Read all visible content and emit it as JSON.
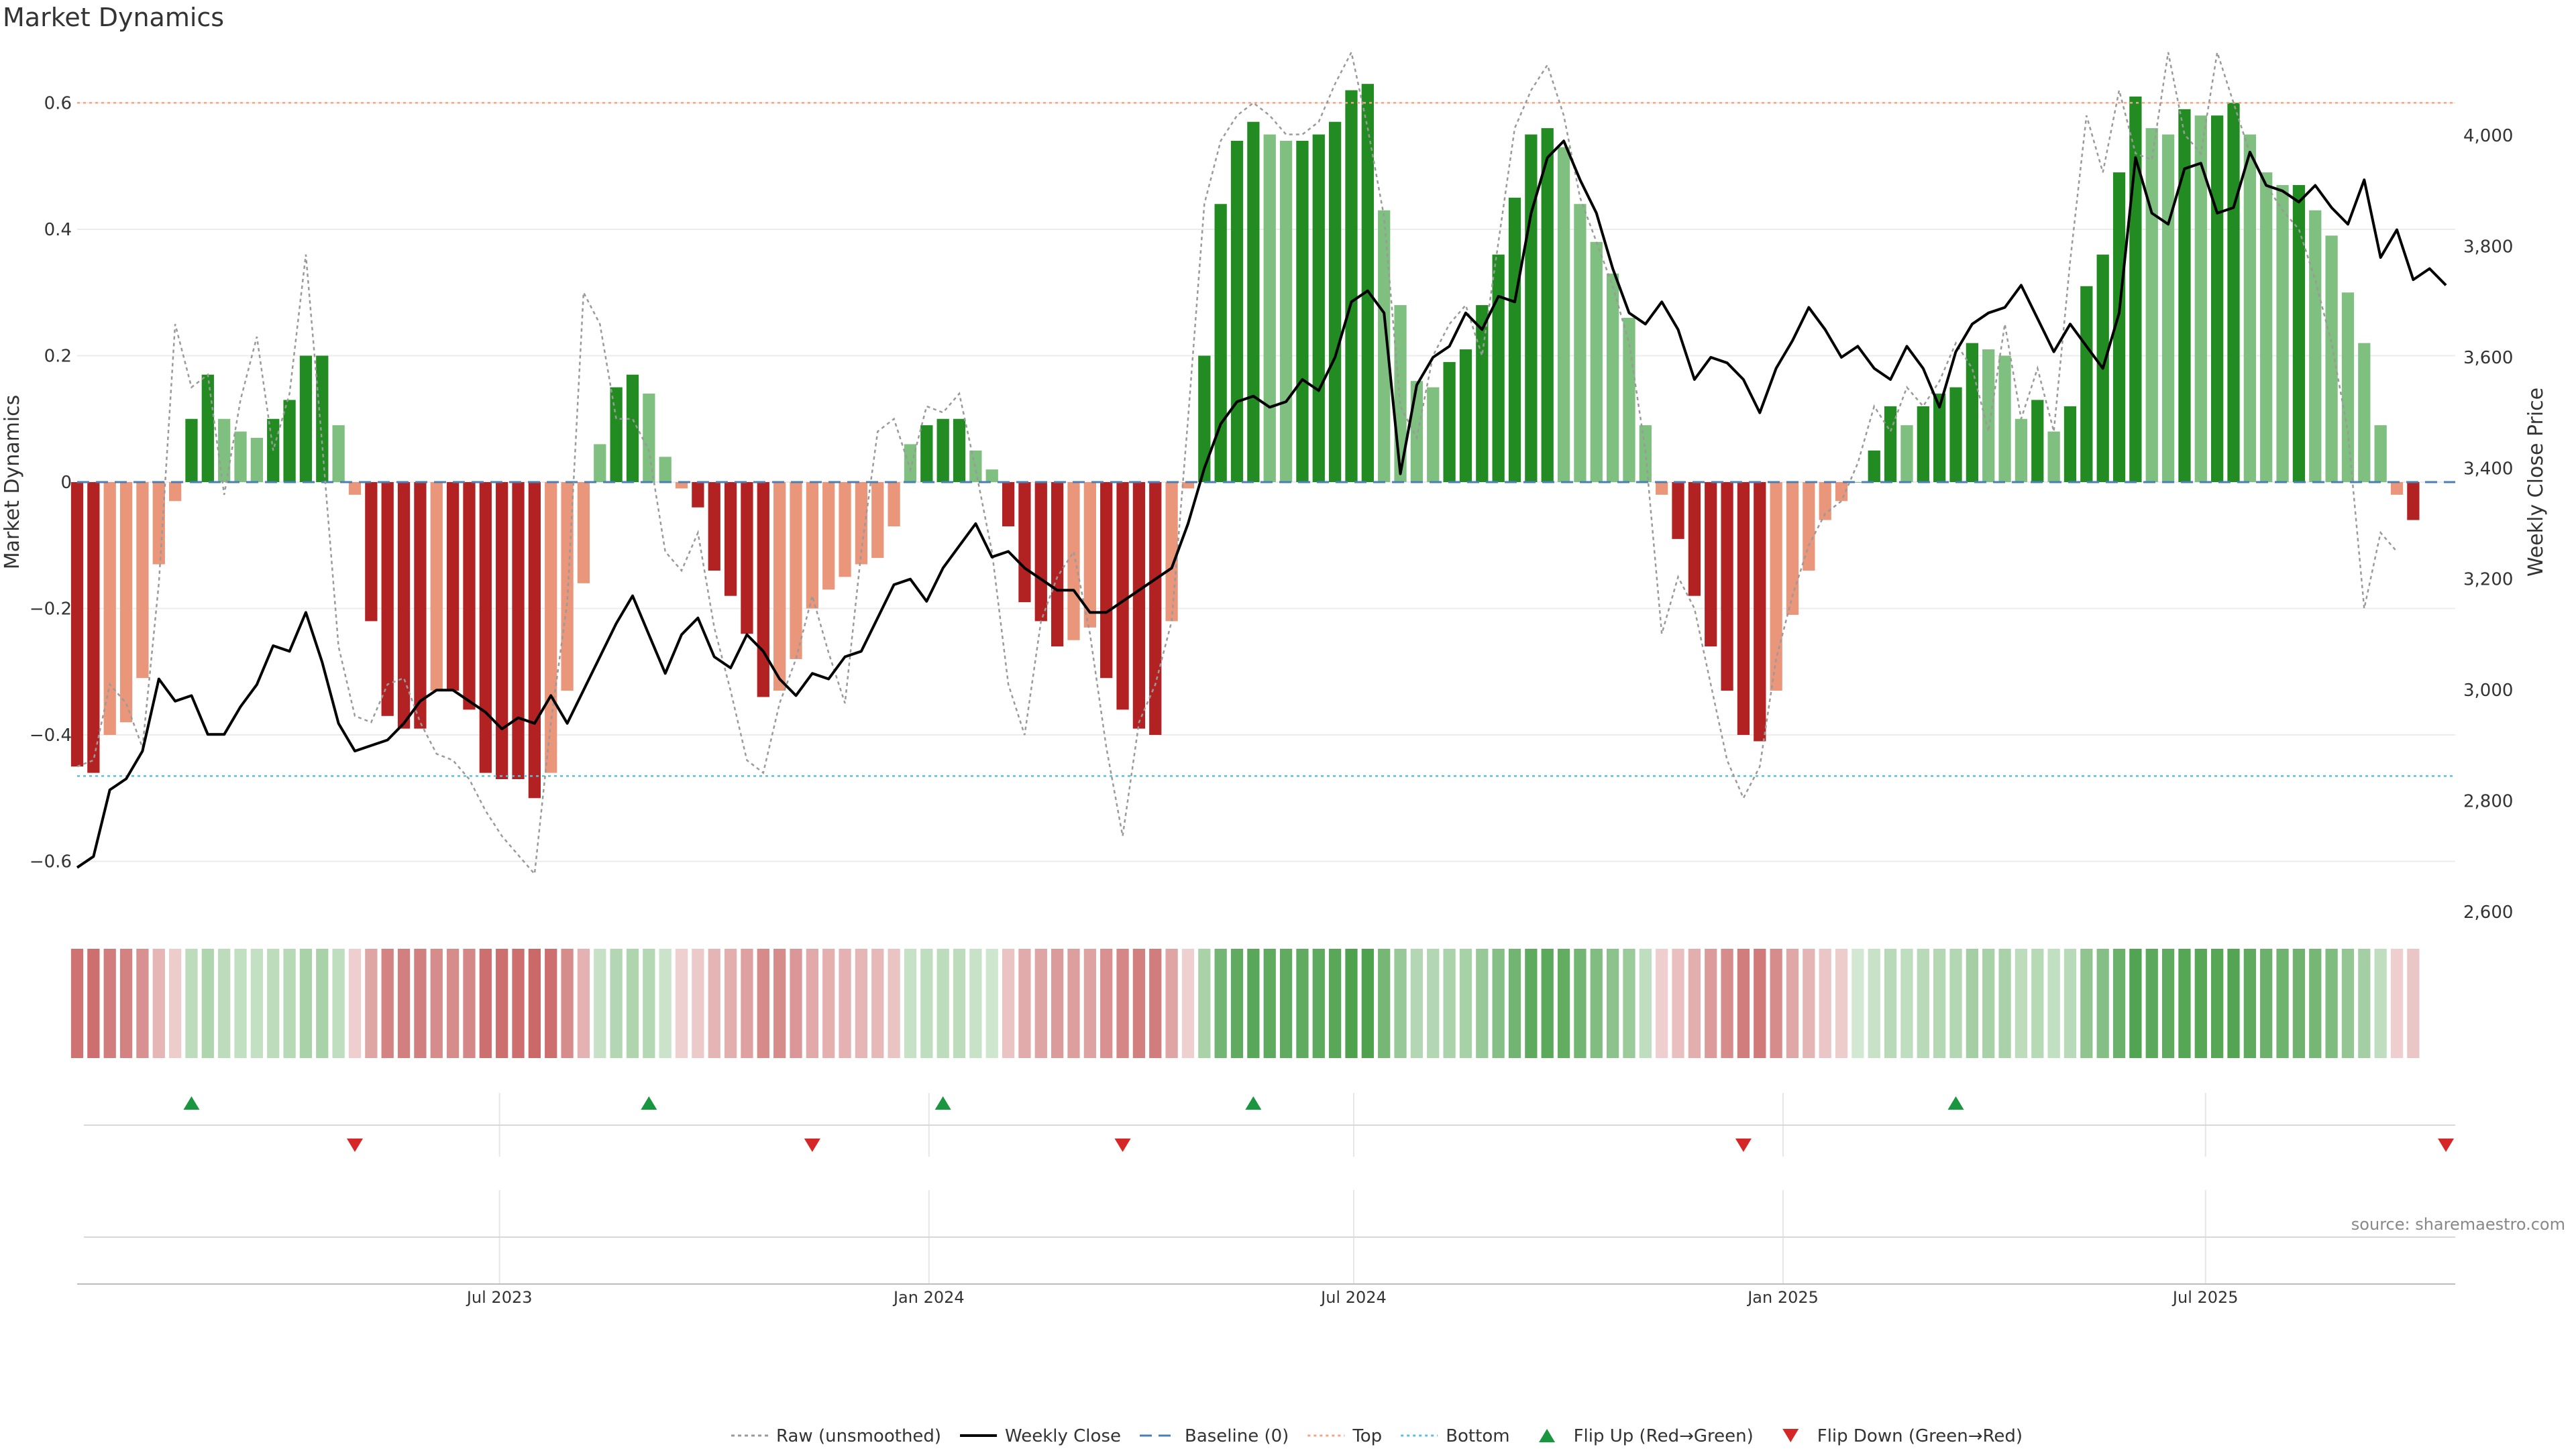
{
  "title": "Market Dynamics",
  "source": "source: sharemaestro.com",
  "chart_data": {
    "type": "bar",
    "title": "Market Dynamics",
    "ylabel_left": "Market Dynamics",
    "ylabel_right": "Weekly Close Price",
    "ylim_left": [
      -0.68,
      0.68
    ],
    "ylim_right": [
      2600,
      4150
    ],
    "yticks_left": [
      -0.6,
      -0.4,
      -0.2,
      0,
      0.2,
      0.4,
      0.6
    ],
    "ytick_labels_left": [
      "−0.6",
      "−0.4",
      "−0.2",
      "0",
      "0.2",
      "0.4",
      "0.6"
    ],
    "yticks_right": [
      2600,
      2800,
      3000,
      3200,
      3400,
      3600,
      3800,
      4000
    ],
    "ytick_labels_right": [
      "2,600",
      "2,800",
      "3,000",
      "3,200",
      "3,400",
      "3,600",
      "3,800",
      "4,000"
    ],
    "x_start": "2023-01-01",
    "x_end": "2025-10-16",
    "x_ticks": [
      {
        "date": "2023-07-01",
        "label": "Jul 2023"
      },
      {
        "date": "2024-01-01",
        "label": "Jan 2024"
      },
      {
        "date": "2024-07-01",
        "label": "Jul 2024"
      },
      {
        "date": "2025-01-01",
        "label": "Jan 2025"
      },
      {
        "date": "2025-07-01",
        "label": "Jul 2025"
      }
    ],
    "first_week": "2023-01-01",
    "week_step_days": 7,
    "bars": [
      -0.45,
      -0.46,
      -0.4,
      -0.38,
      -0.31,
      -0.13,
      -0.03,
      0.1,
      0.17,
      0.1,
      0.08,
      0.07,
      0.1,
      0.13,
      0.2,
      0.2,
      0.09,
      -0.02,
      -0.22,
      -0.37,
      -0.39,
      -0.39,
      -0.33,
      -0.33,
      -0.36,
      -0.46,
      -0.47,
      -0.47,
      -0.5,
      -0.46,
      -0.33,
      -0.16,
      0.06,
      0.15,
      0.17,
      0.14,
      0.04,
      -0.01,
      -0.04,
      -0.14,
      -0.18,
      -0.24,
      -0.34,
      -0.33,
      -0.28,
      -0.2,
      -0.17,
      -0.15,
      -0.13,
      -0.12,
      -0.07,
      0.06,
      0.09,
      0.1,
      0.1,
      0.05,
      0.02,
      -0.07,
      -0.19,
      -0.22,
      -0.26,
      -0.25,
      -0.23,
      -0.31,
      -0.36,
      -0.39,
      -0.4,
      -0.22,
      -0.01,
      0.2,
      0.44,
      0.54,
      0.57,
      0.55,
      0.54,
      0.54,
      0.55,
      0.57,
      0.62,
      0.63,
      0.43,
      0.28,
      0.16,
      0.15,
      0.19,
      0.21,
      0.28,
      0.36,
      0.45,
      0.55,
      0.56,
      0.53,
      0.44,
      0.38,
      0.33,
      0.26,
      0.09,
      -0.02,
      -0.09,
      -0.18,
      -0.26,
      -0.33,
      -0.4,
      -0.41,
      -0.33,
      -0.21,
      -0.14,
      -0.06,
      -0.03,
      0,
      0.05,
      0.12,
      0.09,
      0.12,
      0.14,
      0.15,
      0.22,
      0.21,
      0.2,
      0.1,
      0.13,
      0.08,
      0.12,
      0.31,
      0.36,
      0.49,
      0.61,
      0.56,
      0.55,
      0.59,
      0.58,
      0.58,
      0.6,
      0.55,
      0.49,
      0.47,
      0.47,
      0.43,
      0.39,
      0.3,
      0.22,
      0.09,
      -0.02,
      -0.06
    ],
    "weekly_close": [
      2680,
      2700,
      2820,
      2840,
      2890,
      3020,
      2980,
      2990,
      2920,
      2920,
      2970,
      3010,
      3080,
      3070,
      3140,
      3050,
      2940,
      2890,
      2900,
      2910,
      2940,
      2980,
      3000,
      3000,
      2980,
      2960,
      2930,
      2950,
      2940,
      2990,
      2940,
      3000,
      3060,
      3120,
      3170,
      3100,
      3030,
      3100,
      3130,
      3060,
      3040,
      3100,
      3070,
      3020,
      2990,
      3030,
      3020,
      3060,
      3070,
      3130,
      3190,
      3200,
      3160,
      3220,
      3260,
      3300,
      3240,
      3250,
      3220,
      3200,
      3180,
      3180,
      3140,
      3140,
      3160,
      3180,
      3200,
      3220,
      3300,
      3400,
      3480,
      3520,
      3530,
      3510,
      3520,
      3560,
      3540,
      3600,
      3700,
      3720,
      3680,
      3390,
      3550,
      3600,
      3620,
      3680,
      3650,
      3710,
      3700,
      3860,
      3960,
      3990,
      3920,
      3860,
      3760,
      3680,
      3660,
      3700,
      3650,
      3560,
      3600,
      3590,
      3560,
      3500,
      3580,
      3630,
      3690,
      3650,
      3600,
      3620,
      3580,
      3560,
      3620,
      3580,
      3510,
      3610,
      3660,
      3680,
      3690,
      3730,
      3670,
      3610,
      3660,
      3620,
      3580,
      3680,
      3960,
      3860,
      3840,
      3940,
      3950,
      3860,
      3870,
      3970,
      3910,
      3900,
      3880,
      3910,
      3870,
      3840,
      3920,
      3780,
      3830,
      3740,
      3760,
      3730
    ],
    "raw": [
      -0.45,
      -0.44,
      -0.32,
      -0.35,
      -0.42,
      -0.16,
      0.25,
      0.15,
      0.17,
      -0.02,
      0.13,
      0.23,
      0.05,
      0.14,
      0.36,
      0.06,
      -0.26,
      -0.37,
      -0.38,
      -0.32,
      -0.31,
      -0.38,
      -0.43,
      -0.44,
      -0.47,
      -0.52,
      -0.56,
      -0.59,
      -0.62,
      -0.38,
      -0.19,
      0.3,
      0.25,
      0.1,
      0.1,
      0.05,
      -0.11,
      -0.14,
      -0.08,
      -0.23,
      -0.33,
      -0.44,
      -0.46,
      -0.35,
      -0.28,
      -0.18,
      -0.27,
      -0.35,
      -0.11,
      0.08,
      0.1,
      0.02,
      0.12,
      0.11,
      0.14,
      0.02,
      -0.11,
      -0.32,
      -0.4,
      -0.22,
      -0.15,
      -0.11,
      -0.24,
      -0.42,
      -0.56,
      -0.38,
      -0.32,
      -0.22,
      0.1,
      0.44,
      0.54,
      0.58,
      0.6,
      0.58,
      0.55,
      0.55,
      0.57,
      0.63,
      0.68,
      0.56,
      0.42,
      0.12,
      0.07,
      0.2,
      0.25,
      0.28,
      0.2,
      0.38,
      0.56,
      0.62,
      0.66,
      0.58,
      0.45,
      0.38,
      0.31,
      0.22,
      0.05,
      -0.24,
      -0.15,
      -0.2,
      -0.32,
      -0.44,
      -0.5,
      -0.45,
      -0.28,
      -0.18,
      -0.1,
      -0.05,
      -0.03,
      0.03,
      0.12,
      0.08,
      0.15,
      0.12,
      0.16,
      0.22,
      0.18,
      0.08,
      0.25,
      0.1,
      0.18,
      0.08,
      0.35,
      0.58,
      0.49,
      0.62,
      0.52,
      0.51,
      0.68,
      0.55,
      0.52,
      0.68,
      0.6,
      0.52,
      0.47,
      0.43,
      0.4,
      0.32,
      0.22,
      0.08,
      -0.2,
      -0.08,
      -0.11
    ],
    "top_threshold": 0.6,
    "bottom_threshold": -0.465,
    "baseline": 0,
    "flips_up": [
      "2023-02-19",
      "2023-09-03",
      "2024-01-07",
      "2024-05-19",
      "2025-03-16"
    ],
    "flips_down": [
      "2023-04-30",
      "2023-11-12",
      "2024-03-24",
      "2024-12-15",
      "2025-10-12"
    ],
    "colors": {
      "green_strong": "#228B22",
      "green_light": "#7fbf7f",
      "red_strong": "#b22222",
      "red_light": "#e9967a",
      "close_line": "#000000",
      "raw_line": "#9a9a9a",
      "baseline": "#4a7fb5",
      "top": "#f4a582",
      "bottom": "#5bc0de",
      "flip_up": "#1a9641",
      "flip_down": "#d62728"
    },
    "legend_position": "bottom-center",
    "legend": [
      {
        "key": "raw",
        "label": "Raw (unsmoothed)",
        "style": "dotted-gray"
      },
      {
        "key": "close",
        "label": "Weekly Close",
        "style": "solid-black"
      },
      {
        "key": "baseline",
        "label": "Baseline (0)",
        "style": "dashed-blue"
      },
      {
        "key": "top",
        "label": "Top",
        "style": "dotted-orange"
      },
      {
        "key": "bottom",
        "label": "Bottom",
        "style": "dotted-cyan"
      },
      {
        "key": "flip_up",
        "label": "Flip Up (Red→Green)",
        "style": "triangle-up-green"
      },
      {
        "key": "flip_down",
        "label": "Flip Down (Green→Red)",
        "style": "triangle-down-red"
      }
    ]
  }
}
